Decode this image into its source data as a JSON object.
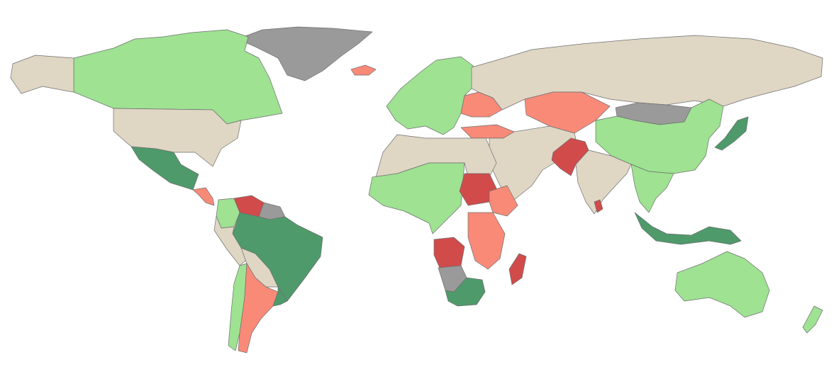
{
  "map": {
    "type": "choropleth world map",
    "colors": {
      "background": "#ffffff",
      "border": "#6e6e6e",
      "dark_green": "#4e9a6b",
      "light_green": "#9ee292",
      "beige": "#dfd6c4",
      "salmon": "#f98a78",
      "red": "#d14b4b",
      "gray": "#9a9a9a"
    },
    "regions": [
      {
        "name": "greenland",
        "category": "gray"
      },
      {
        "name": "canada",
        "category": "light_green"
      },
      {
        "name": "alaska",
        "category": "beige"
      },
      {
        "name": "usa",
        "category": "beige"
      },
      {
        "name": "mexico",
        "category": "dark_green"
      },
      {
        "name": "central-america",
        "category": "salmon"
      },
      {
        "name": "colombia",
        "category": "light_green"
      },
      {
        "name": "venezuela",
        "category": "red"
      },
      {
        "name": "guianas",
        "category": "gray"
      },
      {
        "name": "brazil",
        "category": "dark_green"
      },
      {
        "name": "peru",
        "category": "beige"
      },
      {
        "name": "bolivia-paraguay",
        "category": "beige"
      },
      {
        "name": "chile",
        "category": "light_green"
      },
      {
        "name": "argentina",
        "category": "salmon"
      },
      {
        "name": "uruguay",
        "category": "dark_green"
      },
      {
        "name": "iceland",
        "category": "salmon"
      },
      {
        "name": "europe",
        "category": "light_green"
      },
      {
        "name": "ukraine-belarus",
        "category": "salmon"
      },
      {
        "name": "turkey",
        "category": "salmon"
      },
      {
        "name": "russia",
        "category": "beige"
      },
      {
        "name": "kazakhstan",
        "category": "salmon"
      },
      {
        "name": "mongolia",
        "category": "gray"
      },
      {
        "name": "china",
        "category": "light_green"
      },
      {
        "name": "middle-east",
        "category": "beige"
      },
      {
        "name": "pakistan",
        "category": "red"
      },
      {
        "name": "india",
        "category": "beige"
      },
      {
        "name": "sri-lanka",
        "category": "red"
      },
      {
        "name": "japan",
        "category": "dark_green"
      },
      {
        "name": "southeast-asia",
        "category": "light_green"
      },
      {
        "name": "indonesia",
        "category": "dark_green"
      },
      {
        "name": "australia",
        "category": "light_green"
      },
      {
        "name": "new-zealand",
        "category": "light_green"
      },
      {
        "name": "north-africa",
        "category": "beige"
      },
      {
        "name": "west-africa",
        "category": "light_green"
      },
      {
        "name": "sudan",
        "category": "red"
      },
      {
        "name": "ethiopia",
        "category": "salmon"
      },
      {
        "name": "angola",
        "category": "red"
      },
      {
        "name": "namibia",
        "category": "gray"
      },
      {
        "name": "south-africa",
        "category": "dark_green"
      },
      {
        "name": "madagascar",
        "category": "red"
      },
      {
        "name": "east-africa",
        "category": "salmon"
      }
    ]
  }
}
